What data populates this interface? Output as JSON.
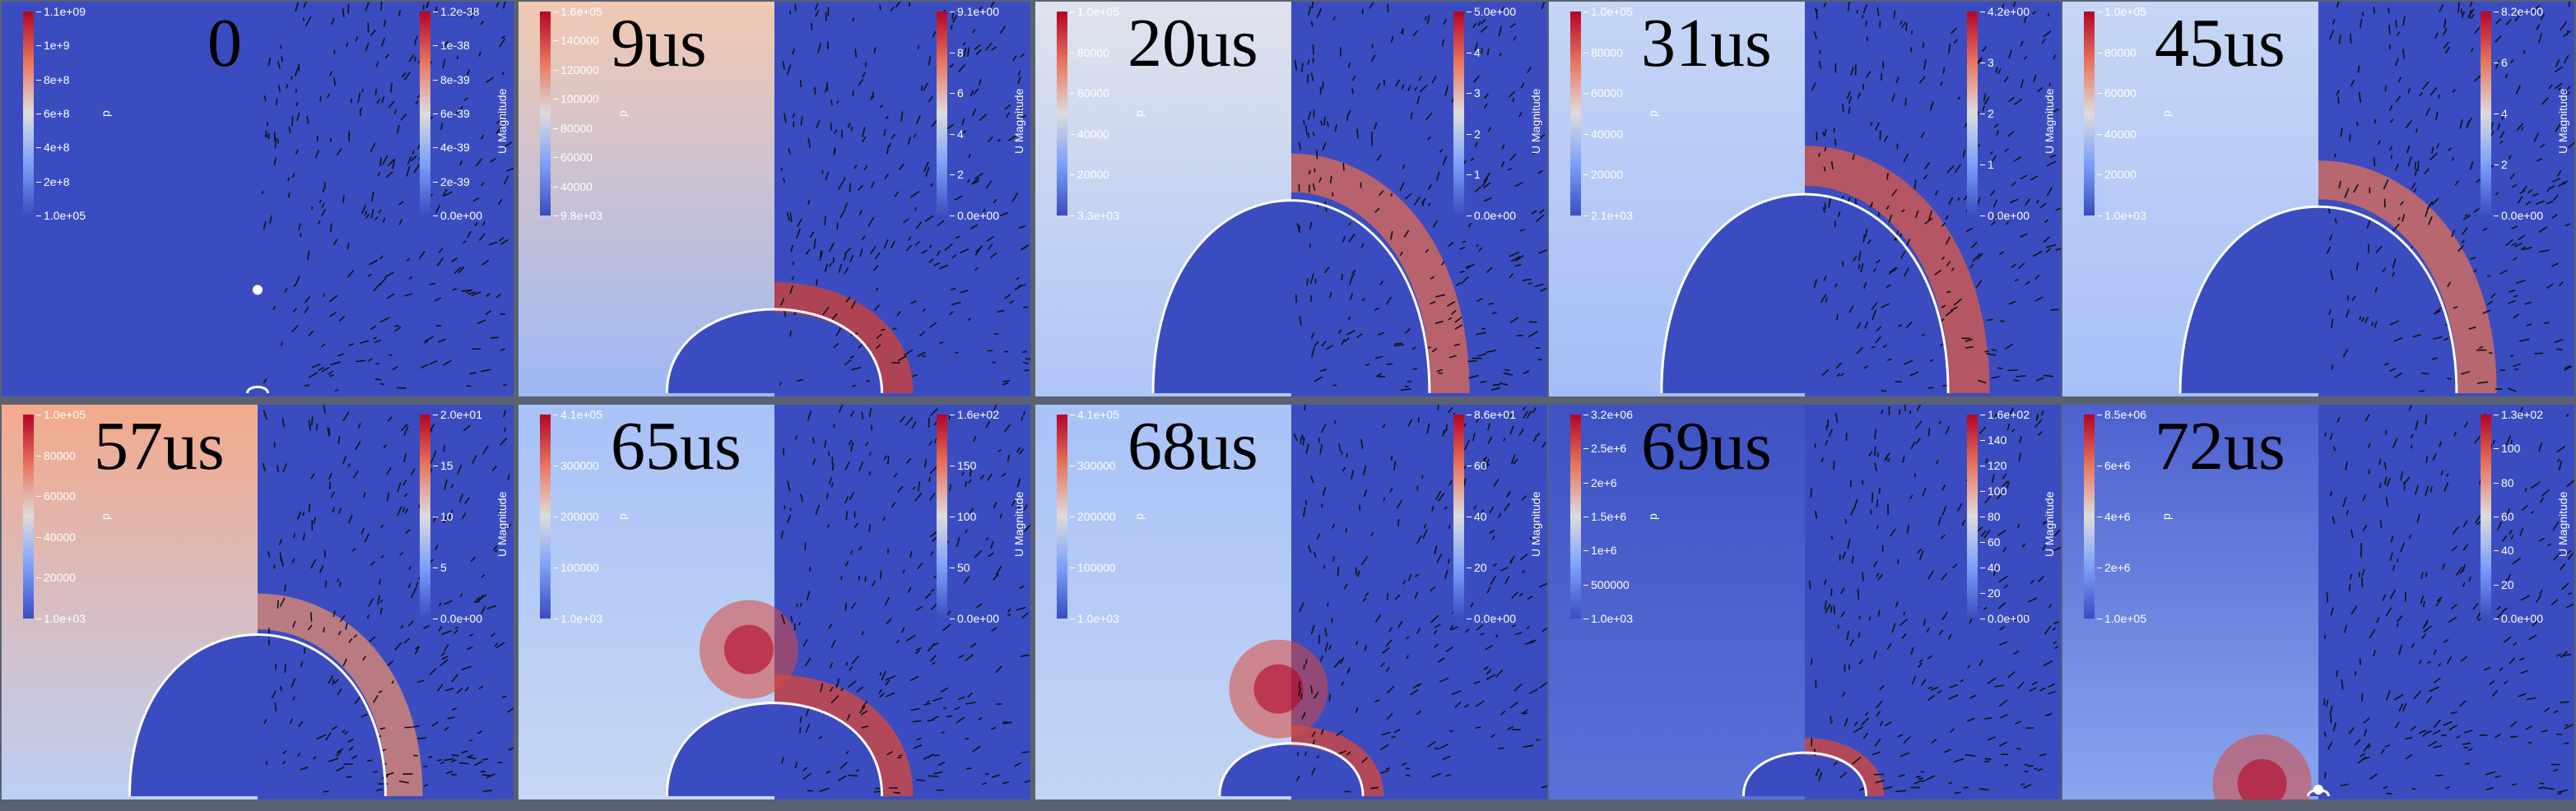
{
  "colors": {
    "low": "#3b4cc0",
    "mid": "#dddcdc",
    "high": "#b40426",
    "contour": "#ffffff",
    "separator": "#5a6170"
  },
  "panels": [
    {
      "time": "0",
      "p_title": "p",
      "p_ticks": [
        "1.1e+09",
        "1e+9",
        "8e+8",
        "6e+8",
        "4e+8",
        "2e+8",
        "1.0e+05"
      ],
      "u_title": "U Magnitude",
      "u_ticks": [
        "1.2e-38",
        "1e-38",
        "8e-39",
        "6e-39",
        "4e-39",
        "2e-39",
        "0.0e+00"
      ],
      "bubble_radius": 0.02,
      "bubble_height": 0.02
    },
    {
      "time": "9us",
      "p_title": "p",
      "p_ticks": [
        "1.6e+05",
        "140000",
        "120000",
        "100000",
        "80000",
        "60000",
        "40000",
        "9.8e+03"
      ],
      "u_title": "U Magnitude",
      "u_ticks": [
        "9.1e+00",
        "8",
        "6",
        "4",
        "2",
        "0.0e+00"
      ],
      "bubble_radius": 0.21,
      "bubble_height": 0.27
    },
    {
      "time": "20us",
      "p_title": "p",
      "p_ticks": [
        "1.0e+05",
        "80000",
        "60000",
        "40000",
        "20000",
        "3.3e+03"
      ],
      "u_title": "U Magnitude",
      "u_ticks": [
        "5.0e+00",
        "4",
        "3",
        "2",
        "1",
        "0.0e+00"
      ],
      "bubble_radius": 0.27,
      "bubble_height": 0.62
    },
    {
      "time": "31us",
      "p_title": "p",
      "p_ticks": [
        "1.0e+05",
        "80000",
        "60000",
        "40000",
        "20000",
        "2.1e+03"
      ],
      "u_title": "U Magnitude",
      "u_ticks": [
        "4.2e+00",
        "3",
        "2",
        "1",
        "0.0e+00"
      ],
      "bubble_radius": 0.28,
      "bubble_height": 0.64
    },
    {
      "time": "45us",
      "p_title": "p",
      "p_ticks": [
        "1.0e+05",
        "80000",
        "60000",
        "40000",
        "20000",
        "1.0e+03"
      ],
      "u_title": "U Magnitude",
      "u_ticks": [
        "8.2e+00",
        "6",
        "4",
        "2",
        "0.0e+00"
      ],
      "bubble_radius": 0.27,
      "bubble_height": 0.6
    },
    {
      "time": "57us",
      "p_title": "p",
      "p_ticks": [
        "1.0e+05",
        "80000",
        "60000",
        "40000",
        "20000",
        "1.0e+03"
      ],
      "u_title": "U Magnitude",
      "u_ticks": [
        "2.0e+01",
        "15",
        "10",
        "5",
        "0.0e+00"
      ],
      "bubble_radius": 0.25,
      "bubble_height": 0.52
    },
    {
      "time": "65us",
      "p_title": "p",
      "p_ticks": [
        "4.1e+05",
        "300000",
        "200000",
        "100000",
        "1.0e+03"
      ],
      "u_title": "U Magnitude",
      "u_ticks": [
        "1.6e+02",
        "150",
        "100",
        "50",
        "0.0e+00"
      ],
      "bubble_radius": 0.21,
      "bubble_height": 0.3
    },
    {
      "time": "68us",
      "p_title": "p",
      "p_ticks": [
        "4.1e+05",
        "300000",
        "200000",
        "100000",
        "1.0e+03"
      ],
      "u_title": "U Magnitude",
      "u_ticks": [
        "8.6e+01",
        "60",
        "40",
        "20",
        "0.0e+00"
      ],
      "bubble_radius": 0.14,
      "bubble_height": 0.17
    },
    {
      "time": "69us",
      "p_title": "p",
      "p_ticks": [
        "3.2e+06",
        "2.5e+6",
        "2e+6",
        "1.5e+6",
        "1e+6",
        "500000",
        "1.0e+03"
      ],
      "u_title": "U Magnitude",
      "u_ticks": [
        "1.6e+02",
        "140",
        "120",
        "100",
        "80",
        "60",
        "40",
        "20",
        "0.0e+00"
      ],
      "bubble_radius": 0.12,
      "bubble_height": 0.14
    },
    {
      "time": "72us",
      "p_title": "p",
      "p_ticks": [
        "8.5e+06",
        "6e+6",
        "4e+6",
        "2e+6",
        "1.0e+05"
      ],
      "u_title": "U Magnitude",
      "u_ticks": [
        "1.3e+02",
        "100",
        "80",
        "60",
        "40",
        "20",
        "0.0e+00"
      ],
      "bubble_radius": 0.02,
      "bubble_height": 0.02
    }
  ]
}
